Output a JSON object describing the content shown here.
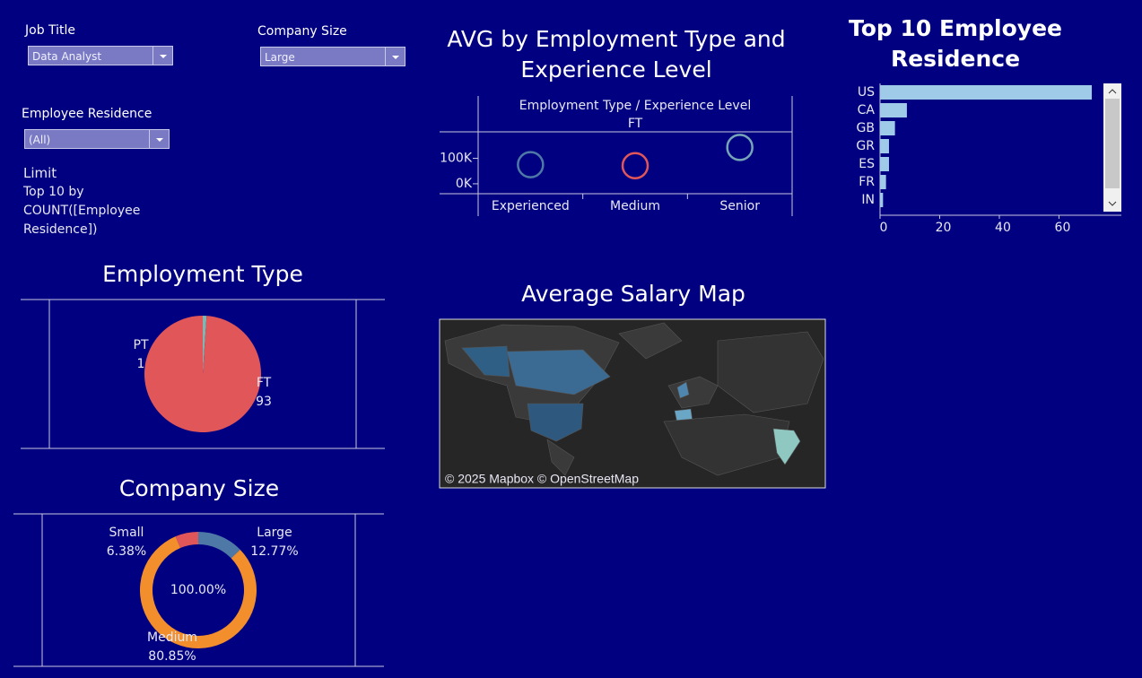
{
  "filters": [
    {
      "label": "Job Title",
      "value": "Data Analyst"
    },
    {
      "label": "Company Size",
      "value": "Large"
    },
    {
      "label": "Employee Residence",
      "value": "(All)"
    }
  ],
  "limit": {
    "label": "Limit",
    "lines": [
      "Top 10 by",
      "COUNT([Employee",
      "Residence])"
    ]
  },
  "chart_data": [
    {
      "type": "dot",
      "title": "AVG by Employment Type and Experience Level",
      "header": "Employment Type  /  Experience Level",
      "column": "FT",
      "categories": [
        "Experienced",
        "Medium",
        "Senior"
      ],
      "values": [
        75000,
        71000,
        143000
      ],
      "colors": [
        "#4e79a7",
        "#e15759",
        "#76a5b8"
      ],
      "ylim": [
        -39000,
        204000
      ],
      "yticks": [
        {
          "value": 0,
          "label": "0K"
        },
        {
          "value": 100000,
          "label": "100K"
        }
      ]
    },
    {
      "type": "hbar",
      "title": "Top 10 Employee Residence",
      "categories": [
        "US",
        "CA",
        "GB",
        "GR",
        "ES",
        "FR",
        "IN"
      ],
      "values": [
        71,
        9,
        5,
        3,
        3,
        2,
        1
      ],
      "color": "#a0cbe8",
      "xlim": [
        0,
        74
      ],
      "xticks": [
        0,
        20,
        40,
        60
      ]
    },
    {
      "type": "pie",
      "title": "Employment Type",
      "categories": [
        "PT",
        "FT"
      ],
      "values": [
        1,
        93
      ],
      "colors": [
        "#7fb8b3",
        "#e15759"
      ]
    },
    {
      "type": "donut",
      "title": "Company Size",
      "categories": [
        "Large",
        "Medium",
        "Small"
      ],
      "values": [
        12.77,
        80.85,
        6.38
      ],
      "value_labels": [
        "12.77%",
        "80.85%",
        "6.38%"
      ],
      "colors": [
        "#4e79a7",
        "#f28e2b",
        "#e15759"
      ],
      "center_label": "100.00%"
    },
    {
      "type": "map",
      "title": "Average Salary Map",
      "attribution": "© 2025 Mapbox © OpenStreetMap"
    }
  ]
}
